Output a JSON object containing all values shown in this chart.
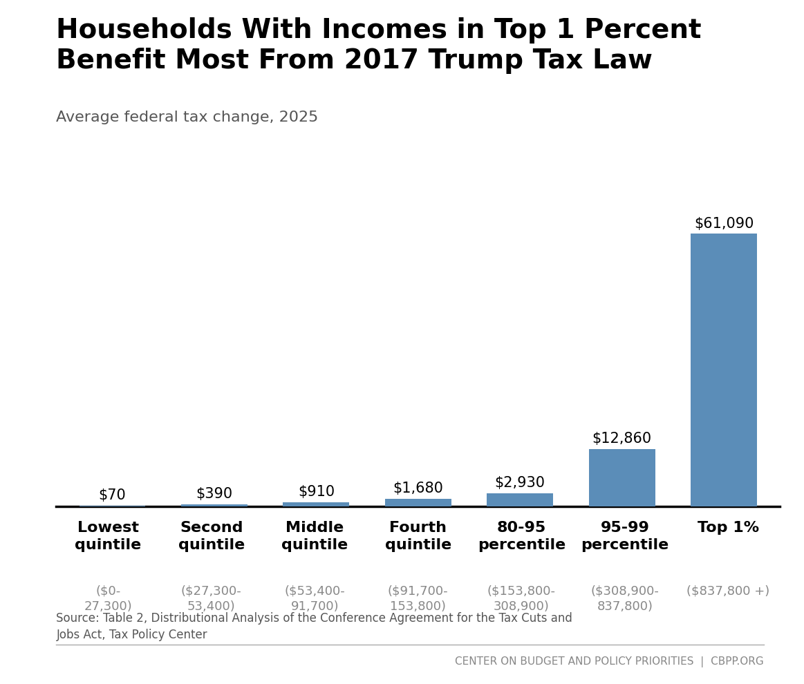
{
  "title": "Households With Incomes in Top 1 Percent\nBenefit Most From 2017 Trump Tax Law",
  "subtitle": "Average federal tax change, 2025",
  "categories": [
    "Lowest\nquintile",
    "Second\nquintile",
    "Middle\nquintile",
    "Fourth\nquintile",
    "80-95\npercentile",
    "95-99\npercentile",
    "Top 1%"
  ],
  "income_ranges": [
    "($0-\n27,300)",
    "($27,300-\n53,400)",
    "($53,400-\n91,700)",
    "($91,700-\n153,800)",
    "($153,800-\n308,900)",
    "($308,900-\n837,800)",
    "($837,800 +)"
  ],
  "values": [
    70,
    390,
    910,
    1680,
    2930,
    12860,
    61090
  ],
  "value_labels": [
    "$70",
    "$390",
    "$910",
    "$1,680",
    "$2,930",
    "$12,860",
    "$61,090"
  ],
  "bar_color": "#5b8db8",
  "background_color": "#ffffff",
  "source_text": "Source: Table 2, Distributional Analysis of the Conference Agreement for the Tax Cuts and\nJobs Act, Tax Policy Center",
  "footer_text": "CENTER ON BUDGET AND POLICY PRIORITIES  |  CBPP.ORG",
  "title_fontsize": 28,
  "subtitle_fontsize": 16,
  "bar_label_fontsize": 15,
  "category_fontsize": 16,
  "range_fontsize": 13,
  "source_fontsize": 12,
  "footer_fontsize": 11
}
